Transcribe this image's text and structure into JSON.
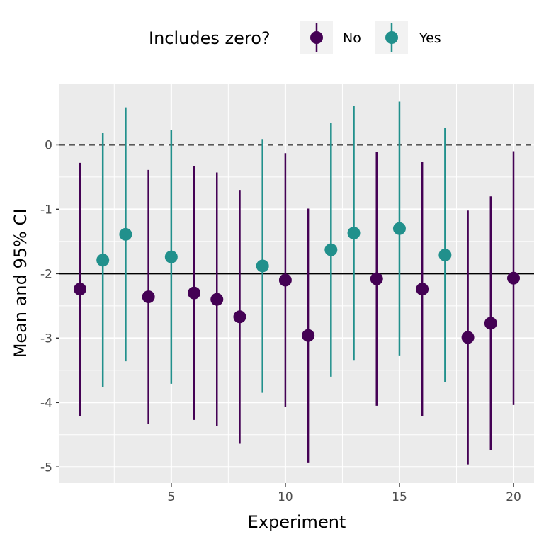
{
  "chart_data": {
    "type": "scatter",
    "xlabel": "Experiment",
    "ylabel": "Mean and 95% CI",
    "xlim": [
      0.1,
      20.9
    ],
    "ylim": [
      -5.25,
      0.95
    ],
    "x_ticks": [
      5,
      10,
      15,
      20
    ],
    "x_tick_labels": [
      "5",
      "10",
      "15",
      "20"
    ],
    "y_ticks": [
      0,
      -1,
      -2,
      -3,
      -4,
      -5
    ],
    "y_tick_labels": [
      "0",
      "-1",
      "-2",
      "-3",
      "-4",
      "-5"
    ],
    "reference_lines": [
      {
        "y": 0,
        "style": "dashed"
      },
      {
        "y": -2,
        "style": "solid"
      }
    ],
    "grid": true,
    "legend": {
      "title": "Includes zero?",
      "position": "top",
      "entries": [
        {
          "label": "No",
          "color": "#440154"
        },
        {
          "label": "Yes",
          "color": "#21908c"
        }
      ]
    },
    "series": [
      {
        "name": "No",
        "color": "#440154",
        "points": [
          {
            "x": 1,
            "y": -2.24,
            "lower": -4.21,
            "upper": -0.28
          },
          {
            "x": 4,
            "y": -2.36,
            "lower": -4.33,
            "upper": -0.39
          },
          {
            "x": 6,
            "y": -2.3,
            "lower": -4.27,
            "upper": -0.33
          },
          {
            "x": 7,
            "y": -2.4,
            "lower": -4.37,
            "upper": -0.43
          },
          {
            "x": 8,
            "y": -2.67,
            "lower": -4.64,
            "upper": -0.7
          },
          {
            "x": 10,
            "y": -2.1,
            "lower": -4.07,
            "upper": -0.13
          },
          {
            "x": 11,
            "y": -2.96,
            "lower": -4.93,
            "upper": -0.99
          },
          {
            "x": 14,
            "y": -2.08,
            "lower": -4.05,
            "upper": -0.11
          },
          {
            "x": 16,
            "y": -2.24,
            "lower": -4.21,
            "upper": -0.27
          },
          {
            "x": 18,
            "y": -2.99,
            "lower": -4.96,
            "upper": -1.02
          },
          {
            "x": 19,
            "y": -2.77,
            "lower": -4.74,
            "upper": -0.8
          },
          {
            "x": 20,
            "y": -2.07,
            "lower": -4.04,
            "upper": -0.1
          }
        ]
      },
      {
        "name": "Yes",
        "color": "#21908c",
        "points": [
          {
            "x": 2,
            "y": -1.79,
            "lower": -3.76,
            "upper": 0.18
          },
          {
            "x": 3,
            "y": -1.39,
            "lower": -3.36,
            "upper": 0.58
          },
          {
            "x": 5,
            "y": -1.74,
            "lower": -3.71,
            "upper": 0.23
          },
          {
            "x": 9,
            "y": -1.88,
            "lower": -3.85,
            "upper": 0.09
          },
          {
            "x": 12,
            "y": -1.63,
            "lower": -3.6,
            "upper": 0.34
          },
          {
            "x": 13,
            "y": -1.37,
            "lower": -3.34,
            "upper": 0.6
          },
          {
            "x": 15,
            "y": -1.3,
            "lower": -3.27,
            "upper": 0.67
          },
          {
            "x": 17,
            "y": -1.71,
            "lower": -3.68,
            "upper": 0.26
          }
        ]
      }
    ]
  }
}
